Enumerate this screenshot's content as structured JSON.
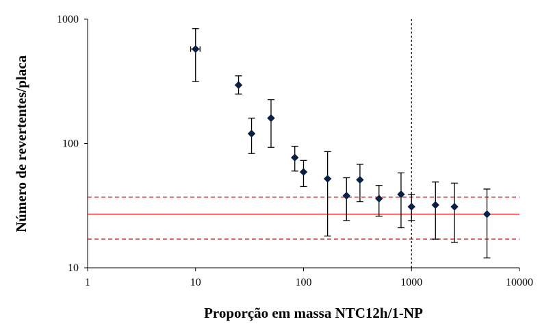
{
  "chart_data": {
    "type": "scatter",
    "title": "",
    "xlabel": "Proporção  em massa NTC12h/1-NP",
    "ylabel": "Número  de revertentes/placa",
    "xscale": "log",
    "yscale": "log",
    "xlim": [
      1,
      10000
    ],
    "ylim": [
      10,
      1000
    ],
    "x_ticks": [
      1,
      10,
      100,
      1000,
      10000
    ],
    "y_ticks": [
      10,
      100,
      1000
    ],
    "x_tick_labels": [
      "1",
      "10",
      "100",
      "1000",
      "10000"
    ],
    "y_tick_labels": [
      "10",
      "100",
      "1000"
    ],
    "grid": false,
    "legend": "none",
    "series": [
      {
        "marker": "diamond",
        "color": "#0a1f44",
        "points": [
          {
            "x": 10,
            "y": 575,
            "y_low": 315,
            "y_high": 840,
            "x_low": 9,
            "x_high": 11
          },
          {
            "x": 25,
            "y": 295,
            "y_low": 250,
            "y_high": 350
          },
          {
            "x": 33,
            "y": 120,
            "y_low": 83,
            "y_high": 160
          },
          {
            "x": 50,
            "y": 160,
            "y_low": 93,
            "y_high": 225
          },
          {
            "x": 83,
            "y": 77,
            "y_low": 60,
            "y_high": 95
          },
          {
            "x": 100,
            "y": 59,
            "y_low": 45,
            "y_high": 73
          },
          {
            "x": 167,
            "y": 52,
            "y_low": 18,
            "y_high": 86
          },
          {
            "x": 250,
            "y": 38,
            "y_low": 24,
            "y_high": 53
          },
          {
            "x": 333,
            "y": 51,
            "y_low": 34,
            "y_high": 68
          },
          {
            "x": 500,
            "y": 36,
            "y_low": 26,
            "y_high": 46
          },
          {
            "x": 800,
            "y": 39,
            "y_low": 21,
            "y_high": 58
          },
          {
            "x": 1000,
            "y": 31,
            "y_low": 24,
            "y_high": 39
          },
          {
            "x": 1667,
            "y": 32,
            "y_low": 17,
            "y_high": 49
          },
          {
            "x": 2500,
            "y": 31,
            "y_low": 16,
            "y_high": 48
          },
          {
            "x": 5000,
            "y": 27,
            "y_low": 12,
            "y_high": 43
          }
        ]
      }
    ],
    "reference_lines": [
      {
        "orientation": "horizontal",
        "value": 27,
        "style": "solid",
        "color": "#e8302f"
      },
      {
        "orientation": "horizontal",
        "value": 37,
        "style": "dashed",
        "color": "#e8302f"
      },
      {
        "orientation": "horizontal",
        "value": 17,
        "style": "dashed",
        "color": "#e8302f"
      },
      {
        "orientation": "vertical",
        "value": 1000,
        "style": "dotted",
        "color": "#000000"
      }
    ]
  }
}
